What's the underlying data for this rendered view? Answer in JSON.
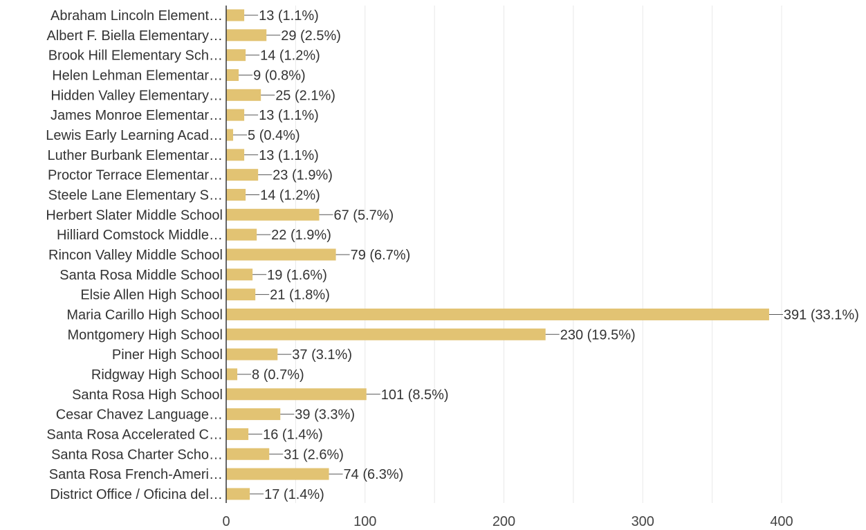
{
  "chart_data": {
    "type": "bar",
    "orientation": "horizontal",
    "categories": [
      "Abraham Lincoln Element…",
      "Albert F. Biella Elementary…",
      "Brook Hill Elementary Sch…",
      "Helen Lehman Elementar…",
      "Hidden Valley Elementary…",
      "James Monroe Elementar…",
      "Lewis Early Learning Acad…",
      "Luther Burbank Elementar…",
      "Proctor Terrace Elementar…",
      "Steele Lane Elementary S…",
      "Herbert Slater Middle School",
      "Hilliard Comstock Middle…",
      "Rincon Valley Middle School",
      "Santa Rosa Middle School",
      "Elsie Allen High School",
      "Maria Carillo High School",
      "Montgomery High School",
      "Piner High School",
      "Ridgway High School",
      "Santa Rosa High School",
      "Cesar Chavez Language…",
      "Santa Rosa Accelerated C…",
      "Santa Rosa Charter Scho…",
      "Santa Rosa French-Ameri…",
      "District Office / Oficina del…"
    ],
    "values": [
      13,
      29,
      14,
      9,
      25,
      13,
      5,
      13,
      23,
      14,
      67,
      22,
      79,
      19,
      21,
      391,
      230,
      37,
      8,
      101,
      39,
      16,
      31,
      74,
      17
    ],
    "value_labels": [
      "13 (1.1%)",
      "29 (2.5%)",
      "14 (1.2%)",
      "9 (0.8%)",
      "25 (2.1%)",
      "13 (1.1%)",
      "5 (0.4%)",
      "13 (1.1%)",
      "23 (1.9%)",
      "14 (1.2%)",
      "67 (5.7%)",
      "22 (1.9%)",
      "79 (6.7%)",
      "19 (1.6%)",
      "21 (1.8%)",
      "391 (33.1%)",
      "230 (19.5%)",
      "37 (3.1%)",
      "8 (0.7%)",
      "101 (8.5%)",
      "39 (3.3%)",
      "16 (1.4%)",
      "31 (2.6%)",
      "74 (6.3%)",
      "17 (1.4%)"
    ],
    "xlim": [
      0,
      400
    ],
    "xticks": [
      0,
      100,
      200,
      300,
      400
    ],
    "grid": true,
    "bar_color": "#E2C373",
    "title": "",
    "xlabel": "",
    "ylabel": ""
  }
}
